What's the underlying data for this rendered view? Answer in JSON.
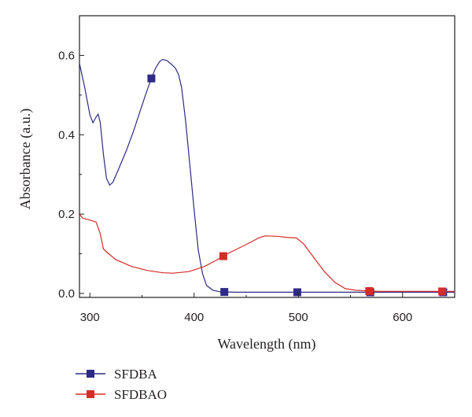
{
  "chart_data": {
    "type": "line",
    "xlabel": "Wavelength (nm)",
    "ylabel": "Absorbance (a.u.)",
    "xlim": [
      290,
      650
    ],
    "ylim": [
      -0.01,
      0.7
    ],
    "x_ticks": [
      300,
      400,
      500,
      600
    ],
    "y_ticks": [
      0.0,
      0.2,
      0.4,
      0.6
    ],
    "x_tick_labels": [
      "300",
      "400",
      "500",
      "600"
    ],
    "y_tick_labels": [
      "0.0",
      "0.2",
      "0.4",
      "0.6"
    ],
    "grid": false,
    "legend_position": "bottom-left",
    "series": [
      {
        "name": "SFDBA",
        "color": "#2e2a85",
        "marker": "square",
        "marker_x": [
          359,
          429,
          499,
          569,
          639
        ],
        "points": [
          [
            290,
            0.58
          ],
          [
            295,
            0.52
          ],
          [
            300,
            0.45
          ],
          [
            303,
            0.43
          ],
          [
            306,
            0.445
          ],
          [
            308,
            0.452
          ],
          [
            310,
            0.43
          ],
          [
            313,
            0.35
          ],
          [
            316,
            0.29
          ],
          [
            319,
            0.273
          ],
          [
            322,
            0.28
          ],
          [
            327,
            0.31
          ],
          [
            335,
            0.36
          ],
          [
            342,
            0.41
          ],
          [
            347,
            0.45
          ],
          [
            352,
            0.49
          ],
          [
            356,
            0.52
          ],
          [
            359,
            0.542
          ],
          [
            363,
            0.568
          ],
          [
            367,
            0.585
          ],
          [
            370,
            0.59
          ],
          [
            374,
            0.587
          ],
          [
            378,
            0.578
          ],
          [
            382,
            0.568
          ],
          [
            385,
            0.552
          ],
          [
            388,
            0.52
          ],
          [
            392,
            0.43
          ],
          [
            396,
            0.32
          ],
          [
            400,
            0.21
          ],
          [
            404,
            0.11
          ],
          [
            408,
            0.05
          ],
          [
            412,
            0.02
          ],
          [
            418,
            0.008
          ],
          [
            425,
            0.004
          ],
          [
            440,
            0.003
          ],
          [
            500,
            0.003
          ],
          [
            570,
            0.003
          ],
          [
            640,
            0.003
          ],
          [
            650,
            0.003
          ]
        ]
      },
      {
        "name": "SFDBAO",
        "color": "#d42d27",
        "marker": "square",
        "marker_x": [
          428,
          568,
          638
        ],
        "points": [
          [
            290,
            0.2
          ],
          [
            293,
            0.19
          ],
          [
            300,
            0.185
          ],
          [
            306,
            0.18
          ],
          [
            310,
            0.15
          ],
          [
            313,
            0.112
          ],
          [
            318,
            0.1
          ],
          [
            325,
            0.085
          ],
          [
            340,
            0.068
          ],
          [
            355,
            0.058
          ],
          [
            370,
            0.052
          ],
          [
            380,
            0.051
          ],
          [
            395,
            0.055
          ],
          [
            410,
            0.068
          ],
          [
            420,
            0.082
          ],
          [
            428,
            0.094
          ],
          [
            435,
            0.104
          ],
          [
            445,
            0.117
          ],
          [
            455,
            0.13
          ],
          [
            462,
            0.14
          ],
          [
            468,
            0.145
          ],
          [
            480,
            0.144
          ],
          [
            490,
            0.141
          ],
          [
            498,
            0.14
          ],
          [
            505,
            0.125
          ],
          [
            515,
            0.09
          ],
          [
            525,
            0.055
          ],
          [
            535,
            0.028
          ],
          [
            545,
            0.012
          ],
          [
            555,
            0.008
          ],
          [
            568,
            0.006
          ],
          [
            580,
            0.005
          ],
          [
            600,
            0.005
          ],
          [
            638,
            0.005
          ],
          [
            650,
            0.005
          ]
        ]
      }
    ]
  }
}
